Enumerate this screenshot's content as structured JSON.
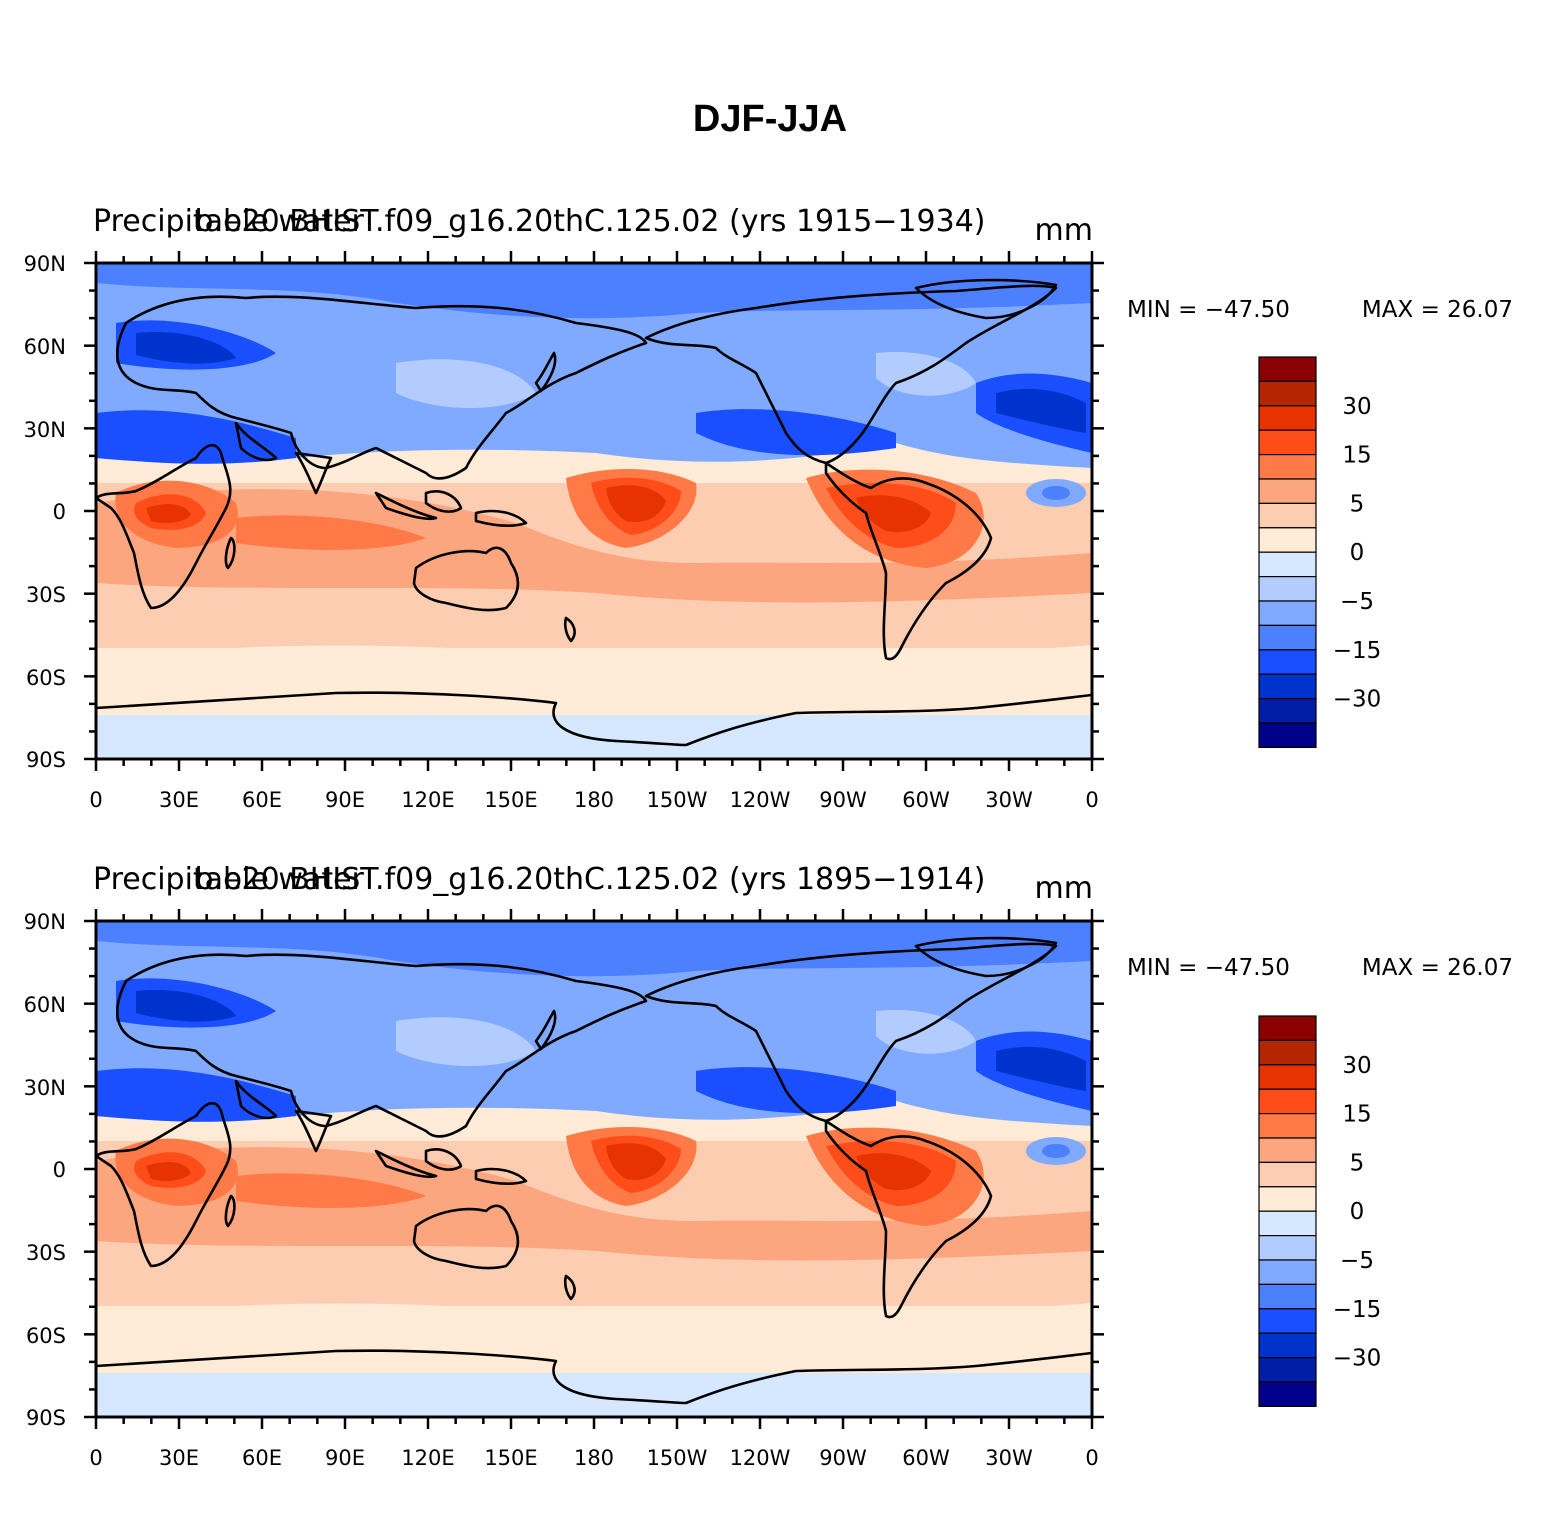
{
  "figure_title": "DJF-JJA",
  "colors": {
    "levels": [
      "#00008b",
      "#001ea6",
      "#0033cc",
      "#1a4fff",
      "#4d80ff",
      "#80aaff",
      "#b3ccff",
      "#d6e8ff",
      "#ffebd6",
      "#fccdb0",
      "#fca680",
      "#ff7a47",
      "#ff4d1a",
      "#e63300",
      "#b32600",
      "#8b0000"
    ],
    "coastline": "#000000"
  },
  "panels": [
    {
      "left_string": "Precipitable water",
      "center_string": "b.e20.BHIST.f09_g16.20thC.125.02 (yrs 1915−1934)",
      "units": "mm",
      "min_label": "MIN = −47.50",
      "max_label": "MAX =   26.07"
    },
    {
      "left_string": "Precipitable water",
      "center_string": "b.e20.BHIST.f09_g16.20thC.125.02 (yrs 1895−1914)",
      "units": "mm",
      "min_label": "MIN = −47.50",
      "max_label": "MAX =   26.07"
    }
  ],
  "axes": {
    "lat_labels": [
      "90N",
      "60N",
      "30N",
      "0",
      "30S",
      "60S",
      "90S"
    ],
    "lon_labels": [
      "0",
      "30E",
      "60E",
      "90E",
      "120E",
      "150E",
      "180",
      "150W",
      "120W",
      "90W",
      "60W",
      "30W",
      "0"
    ]
  },
  "colorbar_labels": [
    "30",
    "15",
    "5",
    "0",
    "−5",
    "−15",
    "−30"
  ]
}
